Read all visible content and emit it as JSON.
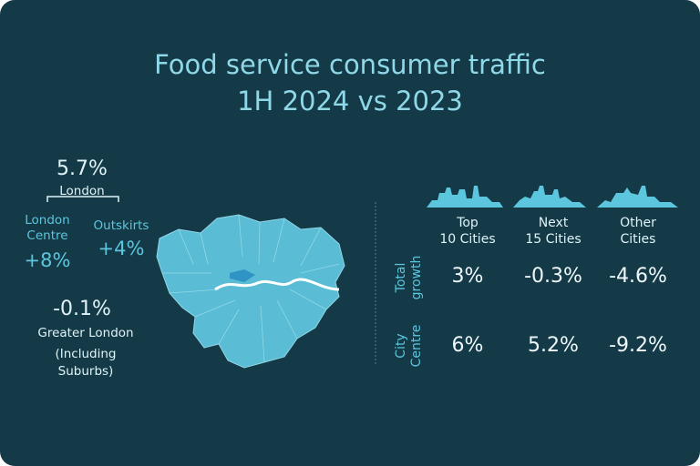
{
  "title": [
    "Food service consumer traffic",
    "1H 2024 vs 2023"
  ],
  "london": {
    "value": "5.7%",
    "label": "London",
    "centre": {
      "label": [
        "London",
        "Centre"
      ],
      "value": "+8%"
    },
    "outskirts": {
      "label": "Outskirts",
      "value": "+4%"
    },
    "greater": {
      "value": "-0.1%",
      "label": [
        "Greater London",
        "(Including",
        "Suburbs)"
      ]
    }
  },
  "table": {
    "columns": [
      [
        "Top",
        "10 Cities"
      ],
      [
        "Next",
        "15 Cities"
      ],
      [
        "Other",
        "Cities"
      ]
    ],
    "rows": [
      {
        "label": [
          "Total",
          "growth"
        ],
        "values": [
          "3%",
          "-0.3%",
          "-4.6%"
        ]
      },
      {
        "label": [
          "City",
          "Centre"
        ],
        "values": [
          "6%",
          "5.2%",
          "-9.2%"
        ]
      }
    ]
  }
}
